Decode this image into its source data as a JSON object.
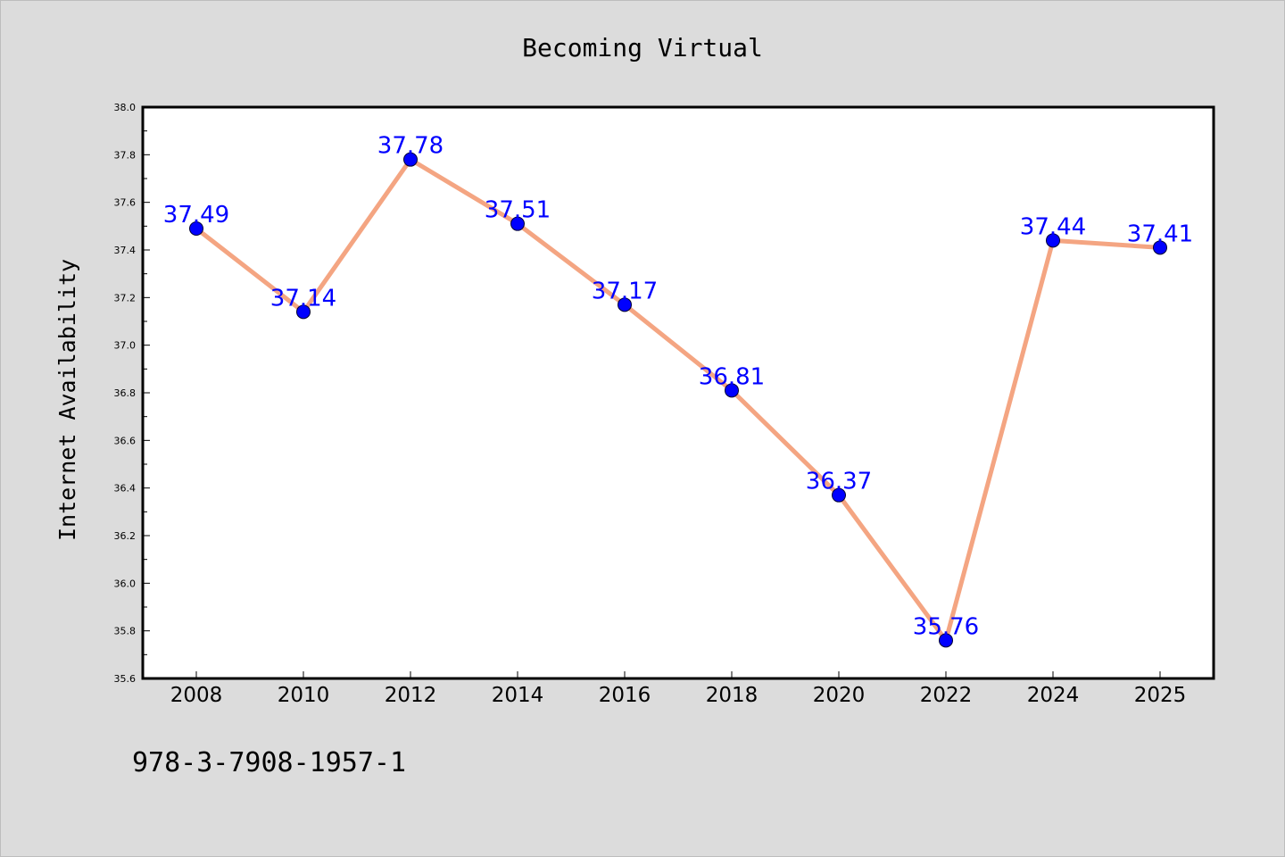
{
  "footer_text": "978-3-7908-1957-1",
  "colors": {
    "background": "#dcdcdc",
    "plot_background": "#ffffff",
    "line": "#f4a582",
    "marker": "#0000ff",
    "label": "#0000ff",
    "axis": "#000000"
  },
  "chart_data": {
    "type": "line",
    "title": "Becoming Virtual",
    "xlabel": "",
    "ylabel": "Internet Availability",
    "categories": [
      "2008",
      "2010",
      "2012",
      "2014",
      "2016",
      "2018",
      "2020",
      "2022",
      "2024",
      "2025"
    ],
    "series": [
      {
        "values": [
          37.49,
          37.14,
          37.78,
          37.51,
          37.17,
          36.81,
          36.37,
          35.76,
          37.44,
          37.41
        ]
      }
    ],
    "data_labels": [
      "37.49",
      "37.14",
      "37.78",
      "37.51",
      "37.17",
      "36.81",
      "36.37",
      "35.76",
      "37.44",
      "37.41"
    ],
    "ylim": [
      35.6,
      38.0
    ],
    "yticks": [
      "35.6",
      "35.8",
      "36.0",
      "36.2",
      "36.4",
      "36.6",
      "36.8",
      "37.0",
      "37.2",
      "37.4",
      "37.6",
      "37.8",
      "38.0"
    ],
    "grid": false,
    "legend": "none"
  }
}
